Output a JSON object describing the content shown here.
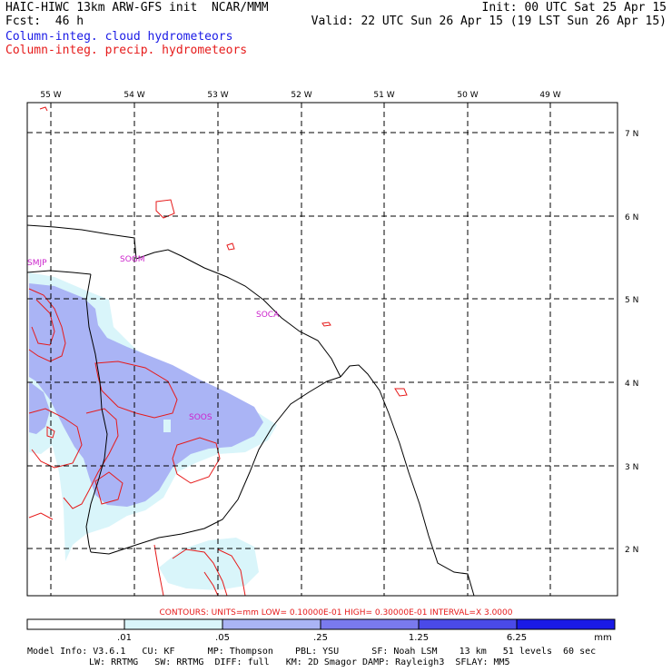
{
  "header": {
    "title": "HAIC-HIWC 13km ARW-GFS init  NCAR/MMM",
    "init": "Init: 00 UTC Sat 25 Apr 15",
    "fcst": "Fcst:  46 h",
    "valid": "Valid: 22 UTC Sun 26 Apr 15 (19 LST Sun 26 Apr 15)",
    "legend_cloud": "Column-integ. cloud hydrometeors",
    "legend_precip": "Column-integ. precip. hydrometeors",
    "cloud_color": "#1a1ae6",
    "precip_color": "#e61a1a"
  },
  "map": {
    "lon_labels": [
      "55 W",
      "54 W",
      "53 W",
      "52 W",
      "51 W",
      "50 W",
      "49 W"
    ],
    "lat_labels": [
      "7 N",
      "6 N",
      "5 N",
      "4 N",
      "3 N",
      "2 N"
    ],
    "stations": [
      "SMJP",
      "SOGM",
      "SOCA",
      "SOOS"
    ],
    "station_color": "#cc22cc"
  },
  "contours_note": "CONTOURS:  UNITS=mm  LOW= 0.10000E-01  HIGH= 0.30000E-01  INTERVAL=X  3.0000",
  "colorbar": {
    "ticks": [
      ".01",
      ".05",
      ".25",
      "1.25",
      "6.25"
    ],
    "units": "mm",
    "colors": [
      "#ffffff",
      "#d9f5fa",
      "#aab4f5",
      "#7a7aee",
      "#4a4ae8",
      "#1a1ae6"
    ]
  },
  "model_info": {
    "line1": "Model Info: V3.6.1   CU: KF      MP: Thompson    PBL: YSU      SF: Noah LSM    13 km   51 levels  60 sec",
    "line2": "LW: RRTMG   SW: RRTMG  DIFF: full   KM: 2D Smagor DAMP: Rayleigh3  SFLAY: MM5"
  }
}
